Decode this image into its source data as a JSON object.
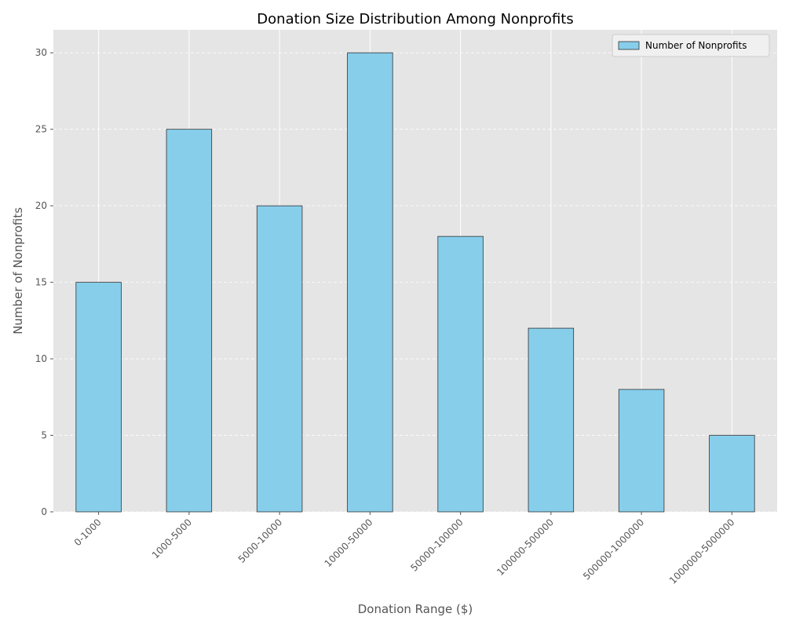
{
  "chart_data": {
    "type": "bar",
    "title": "Donation Size Distribution Among Nonprofits",
    "xlabel": "Donation Range ($)",
    "ylabel": "Number of Nonprofits",
    "categories": [
      "0-1000",
      "1000-5000",
      "5000-10000",
      "10000-50000",
      "50000-100000",
      "100000-500000",
      "500000-1000000",
      "1000000-5000000"
    ],
    "series": [
      {
        "name": "Number of Nonprofits",
        "values": [
          15,
          25,
          20,
          30,
          18,
          12,
          8,
          5
        ]
      }
    ],
    "ylim": [
      0,
      31.5
    ],
    "yticks": [
      0,
      5,
      10,
      15,
      20,
      25,
      30
    ],
    "grid": true,
    "legend_position": "top-right",
    "colors": {
      "bar_fill": "#87ceeb",
      "bar_edge": "#333333",
      "plot_background": "#e5e5e5",
      "grid": "#ffffff"
    }
  }
}
